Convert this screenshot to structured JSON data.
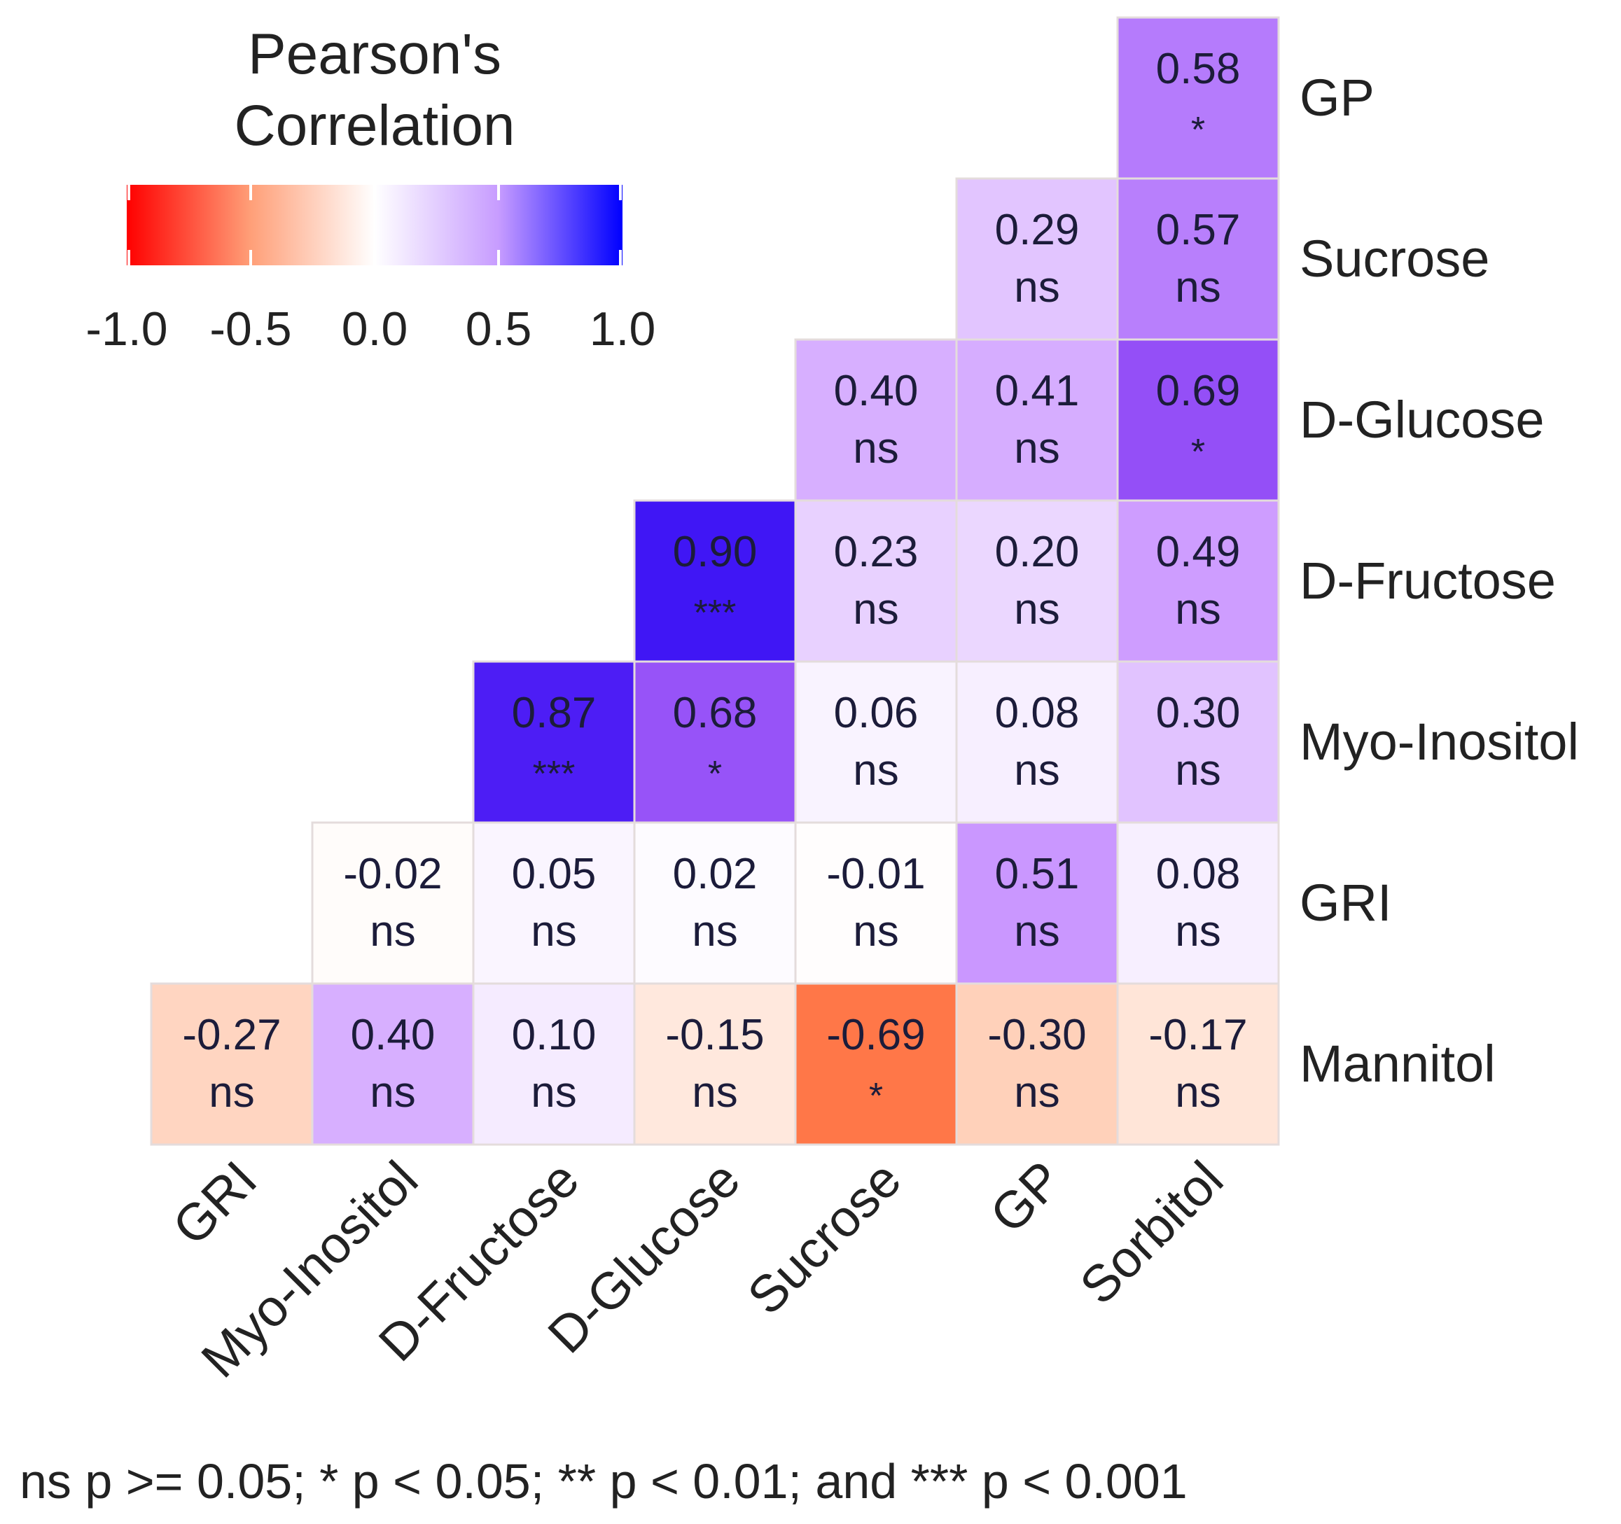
{
  "chart_data": {
    "type": "heatmap",
    "legend": {
      "title_lines": [
        "Pearson's",
        "Correlation"
      ],
      "ticks": [
        "-1.0",
        "-0.5",
        "0.0",
        "0.5",
        "1.0"
      ],
      "tick_values": [
        -1,
        -0.5,
        0,
        0.5,
        1
      ],
      "range": [
        -1,
        1
      ],
      "placement": "top-left",
      "colors": {
        "low": "#ff0000",
        "mid": "#ffffff",
        "high": "#0000ff"
      }
    },
    "row_labels": [
      "GP",
      "Sucrose",
      "D-Glucose",
      "D-Fructose",
      "Myo-Inositol",
      "GRI",
      "Mannitol"
    ],
    "col_labels": [
      "GRI",
      "Myo-Inositol",
      "D-Fructose",
      "D-Glucose",
      "Sucrose",
      "GP",
      "Sorbitol"
    ],
    "cells": [
      {
        "row": "GP",
        "col": "Sorbitol",
        "value": "0.58",
        "sig": "*"
      },
      {
        "row": "Sucrose",
        "col": "GP",
        "value": "0.29",
        "sig": "ns"
      },
      {
        "row": "Sucrose",
        "col": "Sorbitol",
        "value": "0.57",
        "sig": "ns"
      },
      {
        "row": "D-Glucose",
        "col": "Sucrose",
        "value": "0.40",
        "sig": "ns"
      },
      {
        "row": "D-Glucose",
        "col": "GP",
        "value": "0.41",
        "sig": "ns"
      },
      {
        "row": "D-Glucose",
        "col": "Sorbitol",
        "value": "0.69",
        "sig": "*"
      },
      {
        "row": "D-Fructose",
        "col": "D-Glucose",
        "value": "0.90",
        "sig": "***"
      },
      {
        "row": "D-Fructose",
        "col": "Sucrose",
        "value": "0.23",
        "sig": "ns"
      },
      {
        "row": "D-Fructose",
        "col": "GP",
        "value": "0.20",
        "sig": "ns"
      },
      {
        "row": "D-Fructose",
        "col": "Sorbitol",
        "value": "0.49",
        "sig": "ns"
      },
      {
        "row": "Myo-Inositol",
        "col": "D-Fructose",
        "value": "0.87",
        "sig": "***"
      },
      {
        "row": "Myo-Inositol",
        "col": "D-Glucose",
        "value": "0.68",
        "sig": "*"
      },
      {
        "row": "Myo-Inositol",
        "col": "Sucrose",
        "value": "0.06",
        "sig": "ns"
      },
      {
        "row": "Myo-Inositol",
        "col": "GP",
        "value": "0.08",
        "sig": "ns"
      },
      {
        "row": "Myo-Inositol",
        "col": "Sorbitol",
        "value": "0.30",
        "sig": "ns"
      },
      {
        "row": "GRI",
        "col": "Myo-Inositol",
        "value": "-0.02",
        "sig": "ns"
      },
      {
        "row": "GRI",
        "col": "D-Fructose",
        "value": "0.05",
        "sig": "ns"
      },
      {
        "row": "GRI",
        "col": "D-Glucose",
        "value": "0.02",
        "sig": "ns"
      },
      {
        "row": "GRI",
        "col": "Sucrose",
        "value": "-0.01",
        "sig": "ns"
      },
      {
        "row": "GRI",
        "col": "GP",
        "value": "0.51",
        "sig": "ns"
      },
      {
        "row": "GRI",
        "col": "Sorbitol",
        "value": "0.08",
        "sig": "ns"
      },
      {
        "row": "Mannitol",
        "col": "GRI",
        "value": "-0.27",
        "sig": "ns"
      },
      {
        "row": "Mannitol",
        "col": "Myo-Inositol",
        "value": "0.40",
        "sig": "ns"
      },
      {
        "row": "Mannitol",
        "col": "D-Fructose",
        "value": "0.10",
        "sig": "ns"
      },
      {
        "row": "Mannitol",
        "col": "D-Glucose",
        "value": "-0.15",
        "sig": "ns"
      },
      {
        "row": "Mannitol",
        "col": "Sucrose",
        "value": "-0.69",
        "sig": "*"
      },
      {
        "row": "Mannitol",
        "col": "GP",
        "value": "-0.30",
        "sig": "ns"
      },
      {
        "row": "Mannitol",
        "col": "Sorbitol",
        "value": "-0.17",
        "sig": "ns"
      }
    ],
    "footnote": "ns p >= 0.05; * p < 0.05; ** p < 0.01; and *** p < 0.001"
  }
}
